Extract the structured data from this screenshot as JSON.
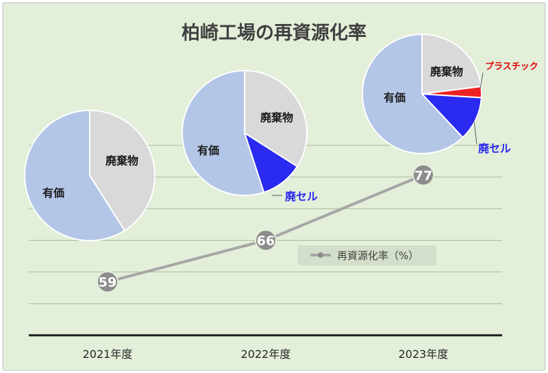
{
  "chart_data": [
    {
      "type": "line",
      "title": "柏崎工場の再資源化率",
      "categories": [
        "2021年度",
        "2022年度",
        "2023年度"
      ],
      "series": [
        {
          "name": "再資源化率（%）",
          "values": [
            59,
            66,
            77
          ]
        }
      ],
      "ylim": [
        50,
        82
      ],
      "grid": true,
      "legend_position": "right-middle",
      "colors": {
        "line": "#a6a6a6",
        "marker": "#8c8c8c",
        "background": "#e3efd9",
        "gridline": "#a9b89f",
        "axis": "#1a1a1a"
      }
    },
    {
      "type": "pie",
      "category": "2021年度",
      "slices": [
        {
          "label": "廃棄物",
          "value": 41,
          "color": "#d9d9d9"
        },
        {
          "label": "有価",
          "value": 59,
          "color": "#b4c6e7"
        }
      ]
    },
    {
      "type": "pie",
      "category": "2022年度",
      "slices": [
        {
          "label": "廃棄物",
          "value": 34,
          "color": "#d9d9d9"
        },
        {
          "label": "廃セル",
          "value": 11,
          "color": "#2a2af0",
          "label_color": "#2a2af0"
        },
        {
          "label": "有価",
          "value": 55,
          "color": "#b4c6e7"
        }
      ]
    },
    {
      "type": "pie",
      "category": "2023年度",
      "slices": [
        {
          "label": "廃棄物",
          "value": 23,
          "color": "#d9d9d9"
        },
        {
          "label": "プラスチック",
          "value": 3,
          "color": "#ee2222",
          "label_color": "#e00000"
        },
        {
          "label": "廃セル",
          "value": 12,
          "color": "#2a2af0",
          "label_color": "#2a2af0"
        },
        {
          "label": "有価",
          "value": 62,
          "color": "#b4c6e7"
        }
      ]
    }
  ]
}
